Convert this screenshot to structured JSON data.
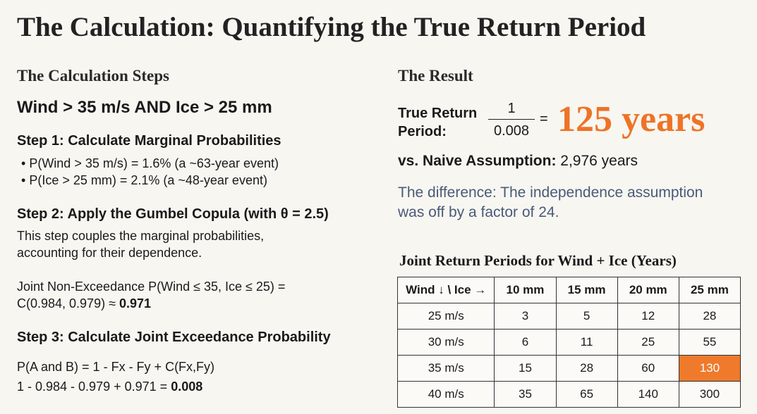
{
  "title": "The Calculation: Quantifying the True Return Period",
  "steps": {
    "heading": "The Calculation Steps",
    "condition": "Wind > 35 m/s AND Ice > 25 mm",
    "step1": {
      "title": "Step 1: Calculate Marginal Probabilities",
      "bullets": [
        "P(Wind > 35 m/s) = 1.6% (a ~63-year event)",
        "P(Ice > 25 mm) = 2.1% (a ~48-year event)"
      ]
    },
    "step2": {
      "title": "Step 2: Apply the Gumbel Copula (with θ = 2.5)",
      "text": [
        "This step couples the marginal probabilities,",
        "accounting for their dependence."
      ],
      "formula": [
        "Joint Non-Exceedance P(Wind ≤ 35, Ice ≤ 25) =",
        "C(0.984, 0.979) ≈"
      ],
      "result": "0.971"
    },
    "step3": {
      "title": "Step 3: Calculate Joint Exceedance Probability",
      "formula": [
        "P(A and B) = 1 - Fx - Fy + C(Fx,Fy)",
        "1 - 0.984 - 0.979 + 0.971 ="
      ],
      "result": "0.008"
    }
  },
  "result": {
    "heading": "The Result",
    "label": [
      "True Return",
      "Period:"
    ],
    "numerator": "1",
    "denominator": "0.008",
    "equals": "=",
    "value": "125 years",
    "naive_label": "vs. Naive Assumption:",
    "naive_value": "2,976 years",
    "difference": [
      "The difference: The independence assumption",
      "was off by a factor of 24."
    ]
  },
  "table": {
    "title": "Joint Return Periods for Wind + Ice (Years)",
    "header": [
      "Wind ↓ \\ Ice →",
      "10 mm",
      "15 mm",
      "20 mm",
      "25 mm"
    ],
    "rows": [
      [
        "25 m/s",
        "3",
        "5",
        "12",
        "28"
      ],
      [
        "30 m/s",
        "6",
        "11",
        "25",
        "55"
      ],
      [
        "35 m/s",
        "15",
        "28",
        "60",
        "130"
      ],
      [
        "40 m/s",
        "35",
        "65",
        "140",
        "300"
      ]
    ],
    "highlight_cell": {
      "row": 2,
      "col": 4,
      "color": "#ef7a2c"
    }
  }
}
